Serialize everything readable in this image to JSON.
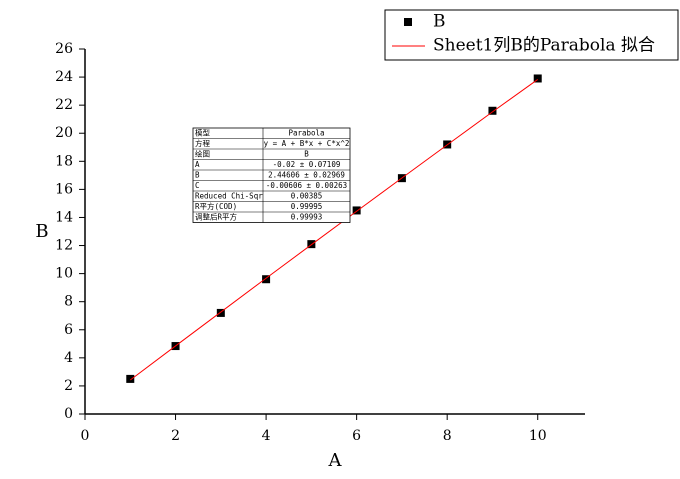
{
  "chart_data": {
    "type": "scatter",
    "xlabel": "A",
    "ylabel": "B",
    "xlim": [
      0,
      11
    ],
    "ylim": [
      0,
      26
    ],
    "xticks": [
      0,
      2,
      4,
      6,
      8,
      10
    ],
    "yticks": [
      0,
      2,
      4,
      6,
      8,
      10,
      12,
      14,
      16,
      18,
      20,
      22,
      24,
      26
    ],
    "legend": "top-right",
    "series": [
      {
        "name": "B",
        "color": "#000000",
        "kind": "markers",
        "x": [
          1,
          2,
          3,
          4,
          5,
          6,
          7,
          8,
          9,
          10
        ],
        "values": [
          2.5,
          4.84,
          7.2,
          9.6,
          12.1,
          14.5,
          16.8,
          19.2,
          21.6,
          23.9
        ]
      },
      {
        "name": "Sheet1列B的Parabola 拟合",
        "color": "#ff0000",
        "kind": "line",
        "x": [
          1,
          2,
          3,
          4,
          5,
          6,
          7,
          8,
          9,
          10
        ],
        "values": [
          2.42,
          4.85,
          7.26,
          9.67,
          12.06,
          14.44,
          16.81,
          19.17,
          21.52,
          23.83
        ]
      }
    ],
    "fit_table": {
      "rows": [
        [
          "模型",
          "Parabola"
        ],
        [
          "方程",
          "y = A + B*x + C*x^2"
        ],
        [
          "绘图",
          "B"
        ],
        [
          "A",
          "-0.02 ± 0.07109"
        ],
        [
          "B",
          "2.44606 ± 0.02969"
        ],
        [
          "C",
          "-0.00606 ± 0.00263"
        ],
        [
          "Reduced Chi-Sqr",
          "0.00385"
        ],
        [
          "R平方(COD)",
          "0.99995"
        ],
        [
          "调整后R平方",
          "0.99993"
        ]
      ]
    }
  }
}
